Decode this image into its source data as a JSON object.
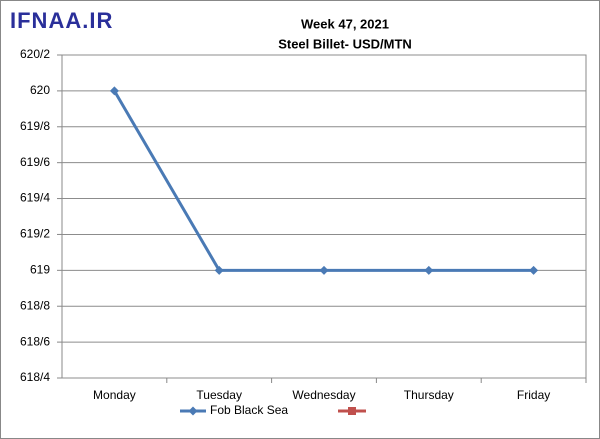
{
  "watermark": "IFNAA.IR",
  "chart_data": {
    "type": "line",
    "title": "Week 47, 2021",
    "subtitle": "Steel Billet- USD/MTN",
    "categories": [
      "Monday",
      "Tuesday",
      "Wednesday",
      "Thursday",
      "Friday"
    ],
    "series": [
      {
        "name": "Fob Black Sea",
        "color": "#4a7ab5",
        "values": [
          620,
          619,
          619,
          619,
          619
        ]
      }
    ],
    "ylim": [
      618.4,
      620.2
    ],
    "yticks": [
      {
        "value": 618.4,
        "label": "618/4"
      },
      {
        "value": 618.6,
        "label": "618/6"
      },
      {
        "value": 618.8,
        "label": "618/8"
      },
      619,
      {
        "value": 619.2,
        "label": "619/2"
      },
      {
        "value": 619.4,
        "label": "619/4"
      },
      {
        "value": 619.6,
        "label": "619/6"
      },
      {
        "value": 619.8,
        "label": "619/8"
      },
      620,
      {
        "value": 620.2,
        "label": "620/2"
      }
    ],
    "grid": true
  }
}
